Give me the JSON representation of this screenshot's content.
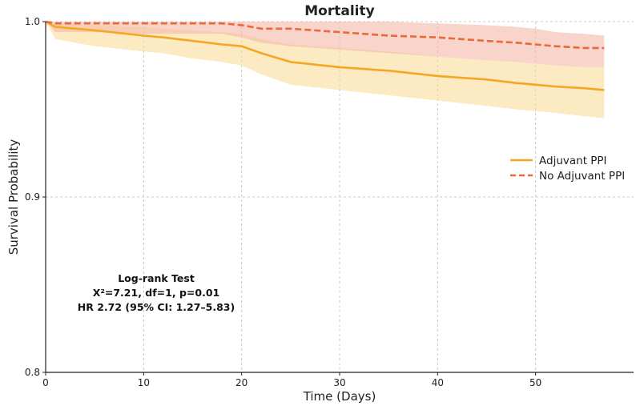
{
  "chart_data": {
    "type": "line",
    "title": "Mortality",
    "xlabel": "Time (Days)",
    "ylabel": "Survival Probability",
    "xlim": [
      0,
      60
    ],
    "ylim": [
      0.8,
      1.0
    ],
    "xticks": [
      0,
      10,
      20,
      30,
      40,
      50
    ],
    "yticks": [
      0.8,
      0.9,
      1.0
    ],
    "xtick_labels": [
      "0",
      "10",
      "20",
      "30",
      "40",
      "50"
    ],
    "ytick_labels": [
      "0.8",
      "0.9",
      "1.0"
    ],
    "grid": true,
    "legend_position": "right",
    "series": [
      {
        "name": "Adjuvant PPI",
        "color": "#f5a623",
        "band_color": "#f8d98f",
        "style": "solid",
        "x": [
          0,
          1,
          5,
          10,
          12,
          15,
          18,
          20,
          22,
          25,
          30,
          35,
          40,
          45,
          48,
          50,
          52,
          55,
          57
        ],
        "y": [
          1.0,
          0.997,
          0.995,
          0.992,
          0.991,
          0.989,
          0.987,
          0.986,
          0.982,
          0.977,
          0.974,
          0.972,
          0.969,
          0.967,
          0.965,
          0.964,
          0.963,
          0.962,
          0.961
        ],
        "lower": [
          1.0,
          0.99,
          0.986,
          0.983,
          0.982,
          0.979,
          0.977,
          0.975,
          0.97,
          0.964,
          0.961,
          0.958,
          0.955,
          0.952,
          0.95,
          0.949,
          0.948,
          0.946,
          0.945
        ],
        "upper": [
          1.0,
          0.999,
          0.998,
          0.997,
          0.996,
          0.995,
          0.994,
          0.993,
          0.99,
          0.987,
          0.985,
          0.983,
          0.98,
          0.978,
          0.977,
          0.976,
          0.975,
          0.974,
          0.974
        ]
      },
      {
        "name": "No Adjuvant PPI",
        "color": "#e8693a",
        "band_color": "#f4b8a6",
        "style": "dashed",
        "x": [
          0,
          1,
          5,
          10,
          15,
          18,
          20,
          22,
          25,
          30,
          35,
          40,
          45,
          48,
          50,
          52,
          55,
          57
        ],
        "y": [
          1.0,
          0.999,
          0.999,
          0.999,
          0.999,
          0.999,
          0.998,
          0.996,
          0.996,
          0.994,
          0.992,
          0.991,
          0.989,
          0.988,
          0.987,
          0.986,
          0.985,
          0.985
        ],
        "lower": [
          1.0,
          0.994,
          0.994,
          0.993,
          0.993,
          0.993,
          0.991,
          0.988,
          0.986,
          0.984,
          0.982,
          0.98,
          0.978,
          0.977,
          0.976,
          0.975,
          0.974,
          0.974
        ],
        "upper": [
          1.0,
          1.0,
          1.0,
          1.0,
          1.0,
          1.0,
          1.0,
          1.0,
          1.0,
          1.0,
          1.0,
          0.999,
          0.998,
          0.997,
          0.996,
          0.994,
          0.993,
          0.992
        ]
      }
    ],
    "annotation": {
      "line1": "Log-rank Test",
      "line2": "X²=7.21, df=1, p=0.01",
      "line3": "HR 2.72 (95% CI: 1.27–5.83)"
    }
  }
}
